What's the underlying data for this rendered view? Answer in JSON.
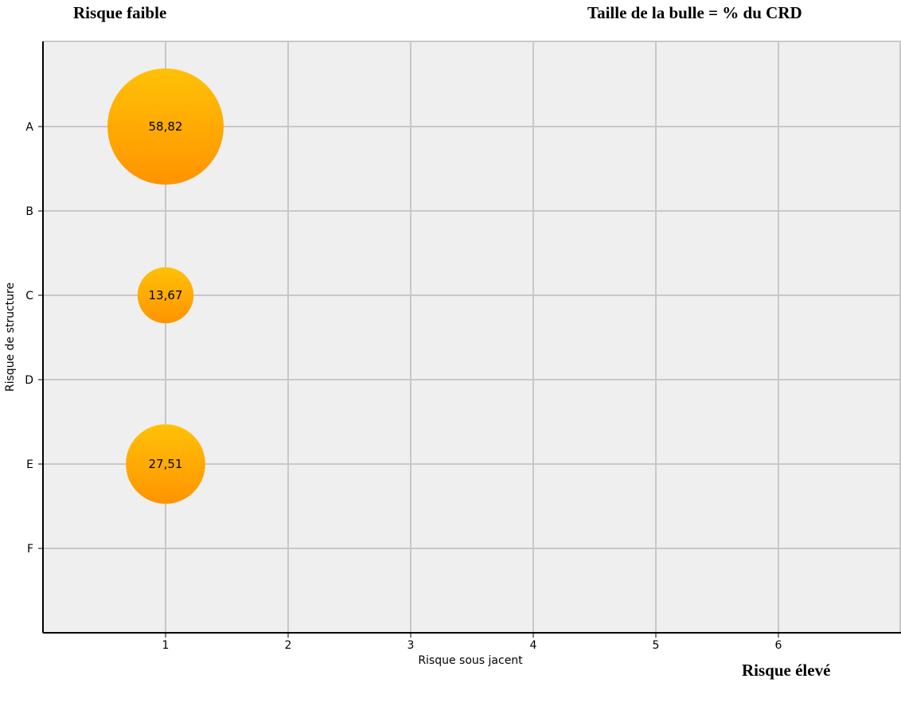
{
  "annotations": {
    "top_left": "Risque faible",
    "top_right": "Taille de la bulle = % du CRD",
    "bottom_right": "Risque élevé"
  },
  "chart_data": {
    "type": "scatter",
    "subtype": "bubble",
    "xlabel": "Risque sous jacent",
    "ylabel": "Risque de structure",
    "x_ticks": [
      1,
      2,
      3,
      4,
      5,
      6
    ],
    "xlim": [
      0,
      7
    ],
    "y_categories": [
      "A",
      "B",
      "C",
      "D",
      "E",
      "F"
    ],
    "grid": true,
    "points": [
      {
        "x": 1,
        "y": "A",
        "size": 58.82,
        "label": "58,82"
      },
      {
        "x": 1,
        "y": "C",
        "size": 13.67,
        "label": "13,67"
      },
      {
        "x": 1,
        "y": "E",
        "size": 27.51,
        "label": "27,51"
      }
    ],
    "colors": {
      "bubble_top": "#ffc107",
      "bubble_bottom": "#ff9400",
      "plot_background": "#efefef",
      "grid": "#c8c8c8",
      "axis": "#000000"
    }
  }
}
